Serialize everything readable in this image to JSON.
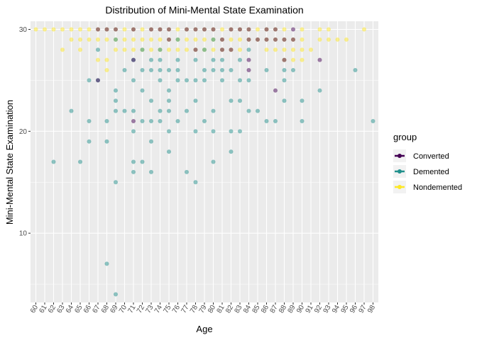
{
  "chart_data": {
    "type": "scatter",
    "title": "Distribution of Mini-Mental State Examination",
    "xlabel": "Age",
    "ylabel": "Mini-Mental State Examination",
    "x_ticks": [
      "60",
      "61",
      "62",
      "63",
      "64",
      "65",
      "66",
      "67",
      "68",
      "69",
      "70",
      "71",
      "72",
      "73",
      "74",
      "75",
      "76",
      "77",
      "78",
      "79",
      "80",
      "81",
      "82",
      "83",
      "84",
      "85",
      "86",
      "87",
      "88",
      "89",
      "90",
      "91",
      "92",
      "93",
      "94",
      "95",
      "96",
      "97",
      "98"
    ],
    "y_ticks": [
      10,
      20,
      30
    ],
    "xlim": [
      59.4,
      98.6
    ],
    "ylim": [
      3.2,
      30.8
    ],
    "grid": true,
    "legend": {
      "title": "group",
      "position": "right",
      "entries": [
        {
          "name": "Converted",
          "color": "#440154"
        },
        {
          "name": "Demented",
          "color": "#21908C"
        },
        {
          "name": "Nondemented",
          "color": "#FDE725"
        }
      ]
    },
    "series": [
      {
        "name": "Nondemented",
        "color": "#FDE725",
        "points": [
          [
            60,
            30
          ],
          [
            61,
            30
          ],
          [
            62,
            30
          ],
          [
            63,
            30
          ],
          [
            63,
            28
          ],
          [
            64,
            30
          ],
          [
            64,
            29
          ],
          [
            65,
            30
          ],
          [
            65,
            29
          ],
          [
            65,
            28
          ],
          [
            66,
            30
          ],
          [
            66,
            29
          ],
          [
            67,
            30
          ],
          [
            67,
            29
          ],
          [
            67,
            27
          ],
          [
            68,
            30
          ],
          [
            68,
            29
          ],
          [
            68,
            27
          ],
          [
            68,
            26
          ],
          [
            69,
            30
          ],
          [
            69,
            29
          ],
          [
            69,
            28
          ],
          [
            70,
            30
          ],
          [
            70,
            29
          ],
          [
            70,
            28
          ],
          [
            71,
            30
          ],
          [
            71,
            29
          ],
          [
            71,
            28
          ],
          [
            72,
            30
          ],
          [
            72,
            29
          ],
          [
            72,
            28
          ],
          [
            73,
            30
          ],
          [
            73,
            29
          ],
          [
            73,
            28
          ],
          [
            74,
            30
          ],
          [
            74,
            29
          ],
          [
            74,
            28
          ],
          [
            75,
            30
          ],
          [
            75,
            29
          ],
          [
            75,
            28
          ],
          [
            76,
            30
          ],
          [
            76,
            29
          ],
          [
            76,
            28
          ],
          [
            77,
            30
          ],
          [
            77,
            29
          ],
          [
            77,
            28
          ],
          [
            78,
            30
          ],
          [
            78,
            29
          ],
          [
            78,
            28
          ],
          [
            79,
            30
          ],
          [
            79,
            29
          ],
          [
            79,
            28
          ],
          [
            80,
            30
          ],
          [
            80,
            29
          ],
          [
            80,
            28
          ],
          [
            81,
            30
          ],
          [
            81,
            29
          ],
          [
            81,
            28
          ],
          [
            82,
            30
          ],
          [
            82,
            29
          ],
          [
            82,
            28
          ],
          [
            83,
            30
          ],
          [
            83,
            29
          ],
          [
            83,
            28
          ],
          [
            84,
            30
          ],
          [
            84,
            29
          ],
          [
            85,
            30
          ],
          [
            85,
            29
          ],
          [
            86,
            30
          ],
          [
            86,
            29
          ],
          [
            86,
            28
          ],
          [
            87,
            30
          ],
          [
            87,
            29
          ],
          [
            87,
            28
          ],
          [
            88,
            30
          ],
          [
            88,
            29
          ],
          [
            88,
            28
          ],
          [
            88,
            27
          ],
          [
            89,
            29
          ],
          [
            89,
            28
          ],
          [
            89,
            27
          ],
          [
            90,
            30
          ],
          [
            90,
            29
          ],
          [
            90,
            28
          ],
          [
            90,
            27
          ],
          [
            91,
            28
          ],
          [
            92,
            30
          ],
          [
            92,
            29
          ],
          [
            93,
            30
          ],
          [
            93,
            29
          ],
          [
            94,
            29
          ],
          [
            95,
            29
          ],
          [
            97,
            30
          ]
        ]
      },
      {
        "name": "Demented",
        "color": "#21908C",
        "points": [
          [
            62,
            17
          ],
          [
            64,
            22
          ],
          [
            65,
            17
          ],
          [
            66,
            25
          ],
          [
            66,
            21
          ],
          [
            66,
            19
          ],
          [
            67,
            28
          ],
          [
            67,
            25
          ],
          [
            68,
            21
          ],
          [
            68,
            19
          ],
          [
            68,
            7
          ],
          [
            69,
            29
          ],
          [
            69,
            24
          ],
          [
            69,
            23
          ],
          [
            69,
            22
          ],
          [
            69,
            15
          ],
          [
            69,
            4
          ],
          [
            70,
            26
          ],
          [
            70,
            22
          ],
          [
            71,
            27
          ],
          [
            71,
            25
          ],
          [
            71,
            22
          ],
          [
            71,
            20
          ],
          [
            71,
            17
          ],
          [
            71,
            16
          ],
          [
            72,
            28
          ],
          [
            72,
            26
          ],
          [
            72,
            24
          ],
          [
            72,
            21
          ],
          [
            72,
            17
          ],
          [
            73,
            27
          ],
          [
            73,
            26
          ],
          [
            73,
            23
          ],
          [
            73,
            21
          ],
          [
            73,
            19
          ],
          [
            73,
            16
          ],
          [
            74,
            28
          ],
          [
            74,
            27
          ],
          [
            74,
            26
          ],
          [
            74,
            25
          ],
          [
            74,
            22
          ],
          [
            74,
            21
          ],
          [
            75,
            26
          ],
          [
            75,
            24
          ],
          [
            75,
            23
          ],
          [
            75,
            22
          ],
          [
            75,
            20
          ],
          [
            75,
            18
          ],
          [
            76,
            29
          ],
          [
            76,
            27
          ],
          [
            76,
            26
          ],
          [
            76,
            25
          ],
          [
            76,
            21
          ],
          [
            77,
            25
          ],
          [
            77,
            22
          ],
          [
            77,
            16
          ],
          [
            78,
            27
          ],
          [
            78,
            25
          ],
          [
            78,
            23
          ],
          [
            78,
            20
          ],
          [
            78,
            15
          ],
          [
            79,
            28
          ],
          [
            79,
            26
          ],
          [
            79,
            25
          ],
          [
            79,
            21
          ],
          [
            80,
            29
          ],
          [
            80,
            27
          ],
          [
            80,
            26
          ],
          [
            80,
            22
          ],
          [
            80,
            20
          ],
          [
            80,
            17
          ],
          [
            81,
            27
          ],
          [
            81,
            26
          ],
          [
            81,
            25
          ],
          [
            82,
            26
          ],
          [
            82,
            23
          ],
          [
            82,
            20
          ],
          [
            82,
            18
          ],
          [
            83,
            27
          ],
          [
            83,
            25
          ],
          [
            83,
            23
          ],
          [
            83,
            20
          ],
          [
            84,
            28
          ],
          [
            84,
            25
          ],
          [
            84,
            22
          ],
          [
            85,
            22
          ],
          [
            86,
            26
          ],
          [
            86,
            21
          ],
          [
            87,
            21
          ],
          [
            88,
            26
          ],
          [
            88,
            25
          ],
          [
            88,
            23
          ],
          [
            89,
            26
          ],
          [
            90,
            23
          ],
          [
            90,
            21
          ],
          [
            92,
            24
          ],
          [
            96,
            26
          ],
          [
            98,
            21
          ]
        ]
      },
      {
        "name": "Converted",
        "color": "#440154",
        "points": [
          [
            67,
            30
          ],
          [
            67,
            25
          ],
          [
            68,
            30
          ],
          [
            69,
            30
          ],
          [
            71,
            30
          ],
          [
            71,
            27
          ],
          [
            71,
            21
          ],
          [
            73,
            30
          ],
          [
            74,
            30
          ],
          [
            75,
            30
          ],
          [
            75,
            29
          ],
          [
            77,
            30
          ],
          [
            78,
            30
          ],
          [
            78,
            28
          ],
          [
            79,
            30
          ],
          [
            80,
            30
          ],
          [
            81,
            29
          ],
          [
            81,
            28
          ],
          [
            82,
            30
          ],
          [
            82,
            28
          ],
          [
            83,
            30
          ],
          [
            84,
            30
          ],
          [
            84,
            29
          ],
          [
            84,
            27
          ],
          [
            84,
            26
          ],
          [
            85,
            29
          ],
          [
            86,
            30
          ],
          [
            86,
            29
          ],
          [
            87,
            30
          ],
          [
            87,
            29
          ],
          [
            87,
            24
          ],
          [
            88,
            29
          ],
          [
            88,
            27
          ],
          [
            89,
            30
          ],
          [
            89,
            29
          ],
          [
            92,
            27
          ]
        ]
      }
    ]
  }
}
